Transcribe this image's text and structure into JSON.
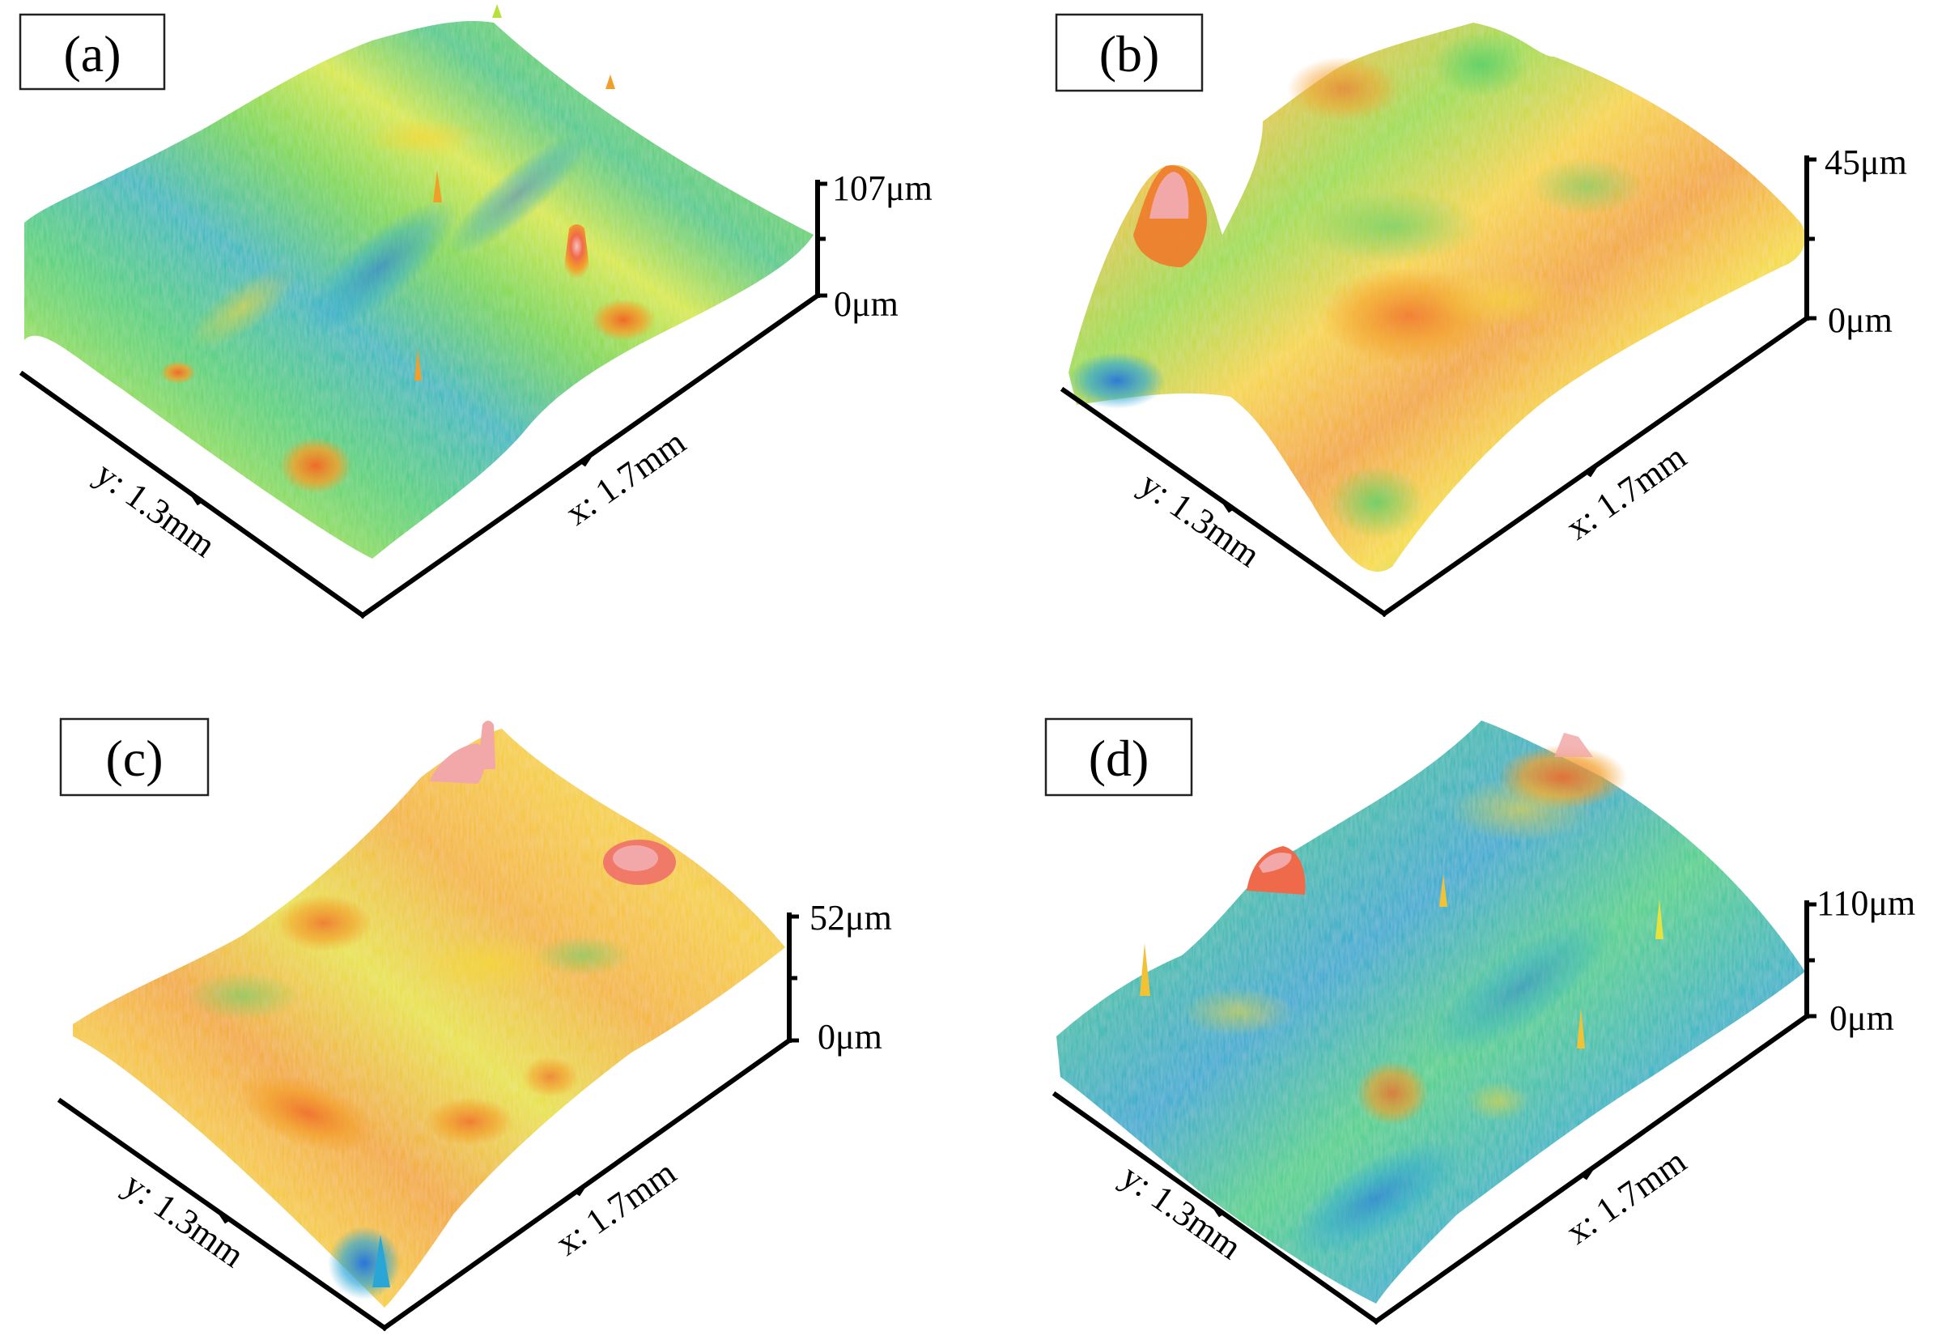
{
  "panels": [
    {
      "id": "a",
      "label": "(a)",
      "z_max": "107μm",
      "z_min": "0μm",
      "y_axis": "y: 1.3mm",
      "x_axis": "x: 1.7mm",
      "dominant_color": "#5fd26a"
    },
    {
      "id": "b",
      "label": "(b)",
      "z_max": "45μm",
      "z_min": "0μm",
      "y_axis": "y: 1.3mm",
      "x_axis": "x: 1.7mm",
      "dominant_color": "#f2d23a"
    },
    {
      "id": "c",
      "label": "(c)",
      "z_max": "52μm",
      "z_min": "0μm",
      "y_axis": "y: 1.3mm",
      "x_axis": "x: 1.7mm",
      "dominant_color": "#f4b62a"
    },
    {
      "id": "d",
      "label": "(d)",
      "z_max": "110μm",
      "z_min": "0μm",
      "y_axis": "y: 1.3mm",
      "x_axis": "x: 1.7mm",
      "dominant_color": "#3cc88a"
    }
  ],
  "colormap": [
    "#1f6fe0",
    "#2ab8d6",
    "#4fd48a",
    "#b8e83a",
    "#f6e62a",
    "#f7a21e",
    "#ef5a2a",
    "#f2a6a6"
  ]
}
